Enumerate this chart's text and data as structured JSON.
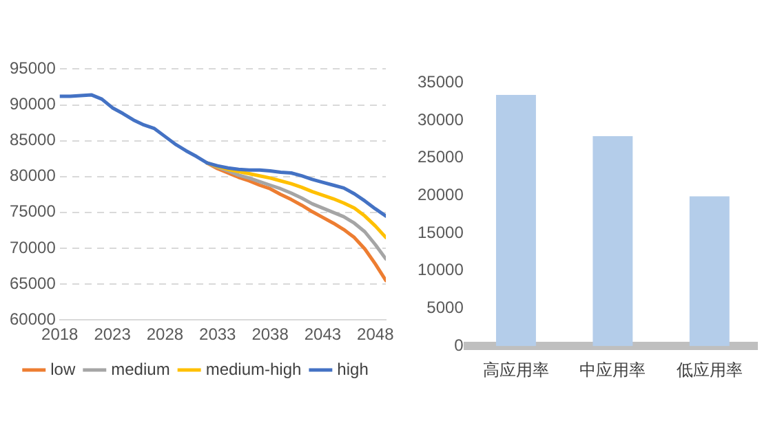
{
  "chart_data": [
    {
      "type": "line",
      "x": [
        2018,
        2019,
        2020,
        2021,
        2022,
        2023,
        2024,
        2025,
        2026,
        2027,
        2028,
        2029,
        2030,
        2031,
        2032,
        2033,
        2034,
        2035,
        2036,
        2037,
        2038,
        2039,
        2040,
        2041,
        2042,
        2043,
        2044,
        2045,
        2046,
        2047,
        2048,
        2049
      ],
      "series": [
        {
          "name": "low",
          "color": "#ed7d31",
          "values": [
            null,
            null,
            null,
            null,
            null,
            null,
            null,
            null,
            null,
            null,
            null,
            null,
            null,
            null,
            81900,
            81100,
            80500,
            79900,
            79400,
            78800,
            78300,
            77500,
            76800,
            76000,
            75100,
            74300,
            73500,
            72600,
            71500,
            69900,
            67800,
            65500
          ]
        },
        {
          "name": "medium",
          "color": "#a5a5a5",
          "values": [
            null,
            null,
            null,
            null,
            null,
            null,
            null,
            null,
            null,
            null,
            null,
            null,
            null,
            null,
            81900,
            81300,
            80800,
            80200,
            79800,
            79300,
            78800,
            78300,
            77700,
            77000,
            76200,
            75600,
            75000,
            74400,
            73500,
            72300,
            70500,
            68500
          ]
        },
        {
          "name": "medium-high",
          "color": "#ffc000",
          "values": [
            null,
            null,
            null,
            null,
            null,
            null,
            null,
            null,
            null,
            null,
            null,
            null,
            null,
            null,
            81900,
            81400,
            81000,
            80700,
            80400,
            80100,
            79800,
            79400,
            79000,
            78500,
            77900,
            77400,
            76900,
            76300,
            75600,
            74500,
            73100,
            71500
          ]
        },
        {
          "name": "high",
          "color": "#4472c4",
          "values": [
            91200,
            91200,
            91300,
            91400,
            90800,
            89600,
            88800,
            87900,
            87200,
            86700,
            85600,
            84500,
            83600,
            82800,
            81900,
            81500,
            81200,
            81000,
            80900,
            80900,
            80800,
            80600,
            80500,
            80100,
            79600,
            79200,
            78800,
            78400,
            77600,
            76600,
            75500,
            74500
          ]
        }
      ],
      "xlim": [
        2018,
        2049
      ],
      "xticks": [
        2018,
        2023,
        2028,
        2033,
        2038,
        2043,
        2048
      ],
      "ylim": [
        60000,
        95000
      ],
      "yticks": [
        60000,
        65000,
        70000,
        75000,
        80000,
        85000,
        90000,
        95000
      ],
      "grid": "y",
      "legend": "bottom",
      "marker": "none",
      "line_style": "solid"
    },
    {
      "type": "bar",
      "categories": [
        "高应用率",
        "中应用率",
        "低应用率"
      ],
      "values": [
        33400,
        27900,
        19900
      ],
      "color": "#b4cdea",
      "ylim": [
        0,
        35000
      ],
      "yticks": [
        0,
        5000,
        10000,
        15000,
        20000,
        25000,
        30000,
        35000
      ],
      "grid": false,
      "legend": false
    }
  ]
}
